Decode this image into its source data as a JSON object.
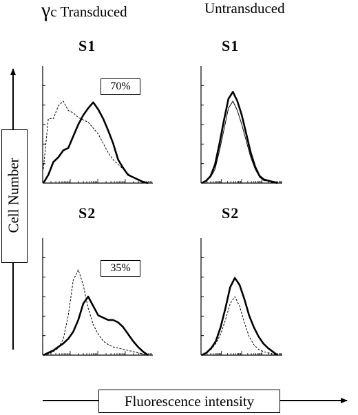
{
  "headers": {
    "left_symbol": "γ",
    "left_text": "c Transduced",
    "right_text": "Untransduced"
  },
  "axes": {
    "ylabel": "Cell Number",
    "xlabel": "Fluorescence intensity"
  },
  "chart_data": [
    {
      "type": "histogram",
      "column": "γc Transduced",
      "panel_label": "S1",
      "annotation": "70%",
      "x_scale": "log",
      "series": [
        {
          "style": "dashed",
          "values": [
            0.12,
            0.55,
            0.55,
            0.66,
            0.7,
            0.62,
            0.6,
            0.56,
            0.54,
            0.52,
            0.47,
            0.42,
            0.34,
            0.26,
            0.2,
            0.16,
            0.12,
            0.08,
            0.05,
            0.03,
            0.01,
            0.0
          ]
        },
        {
          "style": "solid",
          "values": [
            0.0,
            0.07,
            0.18,
            0.22,
            0.28,
            0.3,
            0.4,
            0.5,
            0.58,
            0.64,
            0.69,
            0.63,
            0.55,
            0.45,
            0.34,
            0.2,
            0.13,
            0.07,
            0.05,
            0.03,
            0.01,
            0.0
          ]
        }
      ]
    },
    {
      "type": "histogram",
      "column": "Untransduced",
      "panel_label": "S1",
      "x_scale": "log",
      "series": [
        {
          "style": "thin",
          "values": [
            0.0,
            0.02,
            0.05,
            0.12,
            0.28,
            0.46,
            0.64,
            0.7,
            0.62,
            0.5,
            0.36,
            0.22,
            0.12,
            0.05,
            0.02,
            0.02,
            0.01,
            0.0
          ]
        },
        {
          "style": "solid",
          "values": [
            0.0,
            0.02,
            0.06,
            0.16,
            0.34,
            0.54,
            0.72,
            0.78,
            0.7,
            0.58,
            0.42,
            0.26,
            0.14,
            0.06,
            0.03,
            0.02,
            0.01,
            0.0
          ]
        }
      ]
    },
    {
      "type": "histogram",
      "column": "γc Transduced",
      "panel_label": "S2",
      "annotation": "35%",
      "x_scale": "log",
      "series": [
        {
          "style": "dashed",
          "values": [
            0.0,
            0.01,
            0.03,
            0.06,
            0.14,
            0.34,
            0.64,
            0.73,
            0.6,
            0.4,
            0.26,
            0.18,
            0.12,
            0.09,
            0.07,
            0.06,
            0.05,
            0.04,
            0.03,
            0.02,
            0.01,
            0.0
          ]
        },
        {
          "style": "solid",
          "values": [
            0.0,
            0.02,
            0.04,
            0.07,
            0.1,
            0.14,
            0.2,
            0.3,
            0.44,
            0.5,
            0.42,
            0.34,
            0.32,
            0.3,
            0.3,
            0.28,
            0.24,
            0.18,
            0.12,
            0.07,
            0.03,
            0.0
          ]
        }
      ]
    },
    {
      "type": "histogram",
      "column": "Untransduced",
      "panel_label": "S2",
      "x_scale": "log",
      "series": [
        {
          "style": "dashed",
          "values": [
            0.0,
            0.02,
            0.05,
            0.1,
            0.18,
            0.3,
            0.44,
            0.5,
            0.42,
            0.28,
            0.16,
            0.09,
            0.05,
            0.03,
            0.02,
            0.01,
            0.0
          ]
        },
        {
          "style": "solid",
          "values": [
            0.0,
            0.02,
            0.06,
            0.12,
            0.24,
            0.4,
            0.58,
            0.66,
            0.6,
            0.48,
            0.34,
            0.24,
            0.16,
            0.1,
            0.06,
            0.03,
            0.0
          ]
        }
      ]
    }
  ]
}
